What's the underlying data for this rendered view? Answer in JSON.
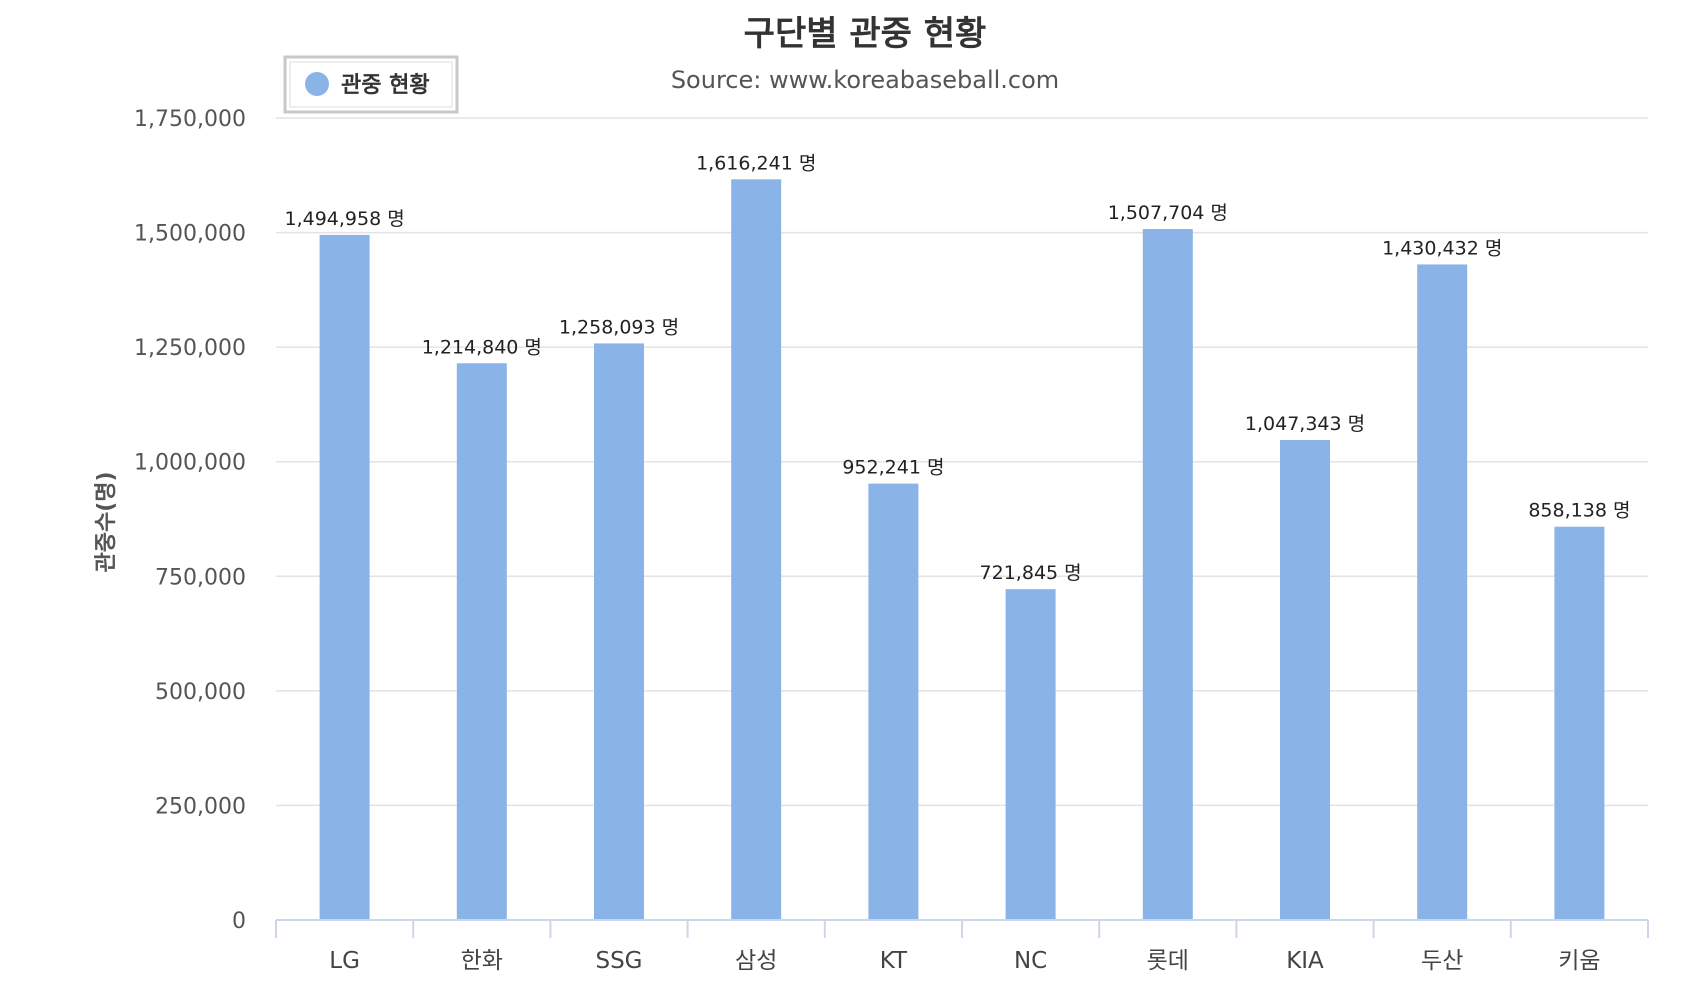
{
  "chart_data": {
    "type": "bar",
    "title": "구단별 관중 현황",
    "subtitle": "Source: www.koreabaseball.com",
    "ylabel": "관중수(명)",
    "xlabel": "",
    "categories": [
      "LG",
      "한화",
      "SSG",
      "삼성",
      "KT",
      "NC",
      "롯데",
      "KIA",
      "두산",
      "키움"
    ],
    "series": [
      {
        "name": "관중 현황",
        "color": "#8ab4e8",
        "values": [
          1494958,
          1214840,
          1258093,
          1616241,
          952241,
          721845,
          1507704,
          1047343,
          1430432,
          858138
        ],
        "labels": [
          "1,494,958 명",
          "1,214,840 명",
          "1,258,093 명",
          "1,616,241 명",
          "952,241 명",
          "721,845 명",
          "1,507,704 명",
          "1,047,343 명",
          "1,430,432 명",
          "858,138 명"
        ]
      }
    ],
    "ylim": [
      0,
      1750000
    ],
    "yticks": [
      0,
      250000,
      500000,
      750000,
      1000000,
      1250000,
      1500000,
      1750000
    ],
    "ytick_labels": [
      "0",
      "250,000",
      "500,000",
      "750,000",
      "1,000,000",
      "1,250,000",
      "1,500,000",
      "1,750,000"
    ],
    "grid": true,
    "legend_position": "top-left",
    "colors": {
      "bar": "#8ab4e8",
      "grid": "#e3e3e3",
      "axis": "#ccd6eb"
    }
  }
}
